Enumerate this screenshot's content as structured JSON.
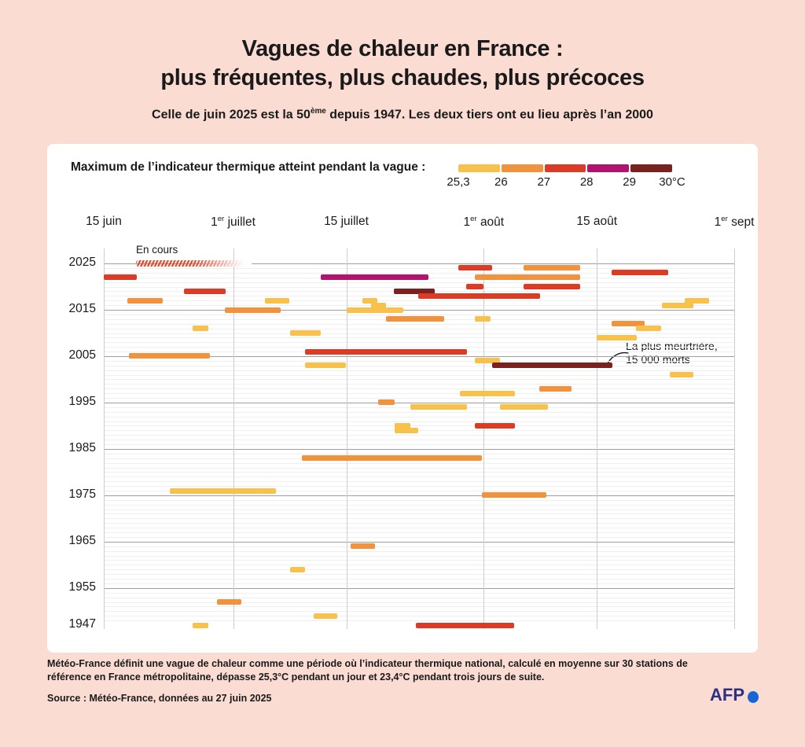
{
  "header": {
    "title_line1": "Vagues de chaleur en France :",
    "title_line2": "plus fréquentes, plus chaudes, plus précoces",
    "subtitle_pre": "Celle de juin 2025 est la 50",
    "subtitle_sup": "ème",
    "subtitle_post": " depuis 1947. Les deux tiers ont eu lieu après l’an 2000"
  },
  "legend": {
    "label": "Maximum de l’indicateur thermique atteint pendant la vague :",
    "boundary_labels": [
      "25,3",
      "26",
      "27",
      "28",
      "29",
      "30°C"
    ]
  },
  "annotations": {
    "en_cours": "En cours",
    "deadliest_line1": "La plus meurtrière,",
    "deadliest_line2": "15 000 morts"
  },
  "footer": {
    "note": "Météo-France définit une vague de chaleur comme une période où l’indicateur thermique national, calculé en moyenne sur 30 stations de référence en France métropolitaine, dépasse 25,3°C pendant un jour et 23,4°C pendant trois jours de suite.",
    "source": "Source : Météo-France, données au 27 juin 2025",
    "logo": "AFP"
  },
  "chart_data": {
    "type": "gantt",
    "description": "Heat waves in France 1947-2025; one horizontal bar per wave, x = day of summer (0 = 15 June, 78 = 1 September), y = year, color = maximum national thermal indicator reached",
    "time_axis": {
      "unit": "days from 15 June",
      "min": 0,
      "max": 78,
      "ticks": [
        {
          "day": 0,
          "pre": "15 juin",
          "sup": "",
          "post": ""
        },
        {
          "day": 16,
          "pre": "1",
          "sup": "er",
          "post": " juillet"
        },
        {
          "day": 30,
          "pre": "15 juillet",
          "sup": "",
          "post": ""
        },
        {
          "day": 47,
          "pre": "1",
          "sup": "er",
          "post": " août"
        },
        {
          "day": 61,
          "pre": "15 août",
          "sup": "",
          "post": ""
        },
        {
          "day": 78,
          "pre": "1",
          "sup": "er",
          "post": " sept"
        }
      ]
    },
    "year_axis": {
      "min": 1947,
      "max": 2025,
      "labels": [
        2025,
        2015,
        2005,
        1995,
        1985,
        1975,
        1965,
        1955,
        1947
      ]
    },
    "levels": [
      {
        "key": "yellow",
        "range": "25,3–26°C",
        "color": "#F7C14B"
      },
      {
        "key": "orange",
        "range": "26–27°C",
        "color": "#F0923E"
      },
      {
        "key": "red",
        "range": "27–28°C",
        "color": "#DC3C26"
      },
      {
        "key": "magenta",
        "range": "28–29°C",
        "color": "#B1136E"
      },
      {
        "key": "maroon",
        "range": "29–30°C",
        "color": "#7B2221"
      }
    ],
    "waves": [
      {
        "year": 2025,
        "start": 4.0,
        "end": 18.3,
        "level": "red",
        "hatched": true,
        "status": "En cours"
      },
      {
        "year": 2024,
        "start": 43.9,
        "end": 48.0,
        "level": "red"
      },
      {
        "year": 2024,
        "start": 51.9,
        "end": 58.9,
        "level": "orange"
      },
      {
        "year": 2023,
        "start": 62.8,
        "end": 69.8,
        "level": "red"
      },
      {
        "year": 2022,
        "start": 0.0,
        "end": 4.1,
        "level": "red"
      },
      {
        "year": 2022,
        "start": 26.8,
        "end": 40.2,
        "level": "magenta"
      },
      {
        "year": 2022,
        "start": 45.9,
        "end": 58.9,
        "level": "orange"
      },
      {
        "year": 2020,
        "start": 44.8,
        "end": 47.0,
        "level": "red"
      },
      {
        "year": 2020,
        "start": 51.9,
        "end": 58.9,
        "level": "red"
      },
      {
        "year": 2019,
        "start": 9.9,
        "end": 15.1,
        "level": "red"
      },
      {
        "year": 2019,
        "start": 35.9,
        "end": 41.0,
        "level": "maroon"
      },
      {
        "year": 2018,
        "start": 38.9,
        "end": 54.0,
        "level": "red"
      },
      {
        "year": 2017,
        "start": 2.9,
        "end": 7.3,
        "level": "orange"
      },
      {
        "year": 2017,
        "start": 19.9,
        "end": 23.0,
        "level": "yellow"
      },
      {
        "year": 2017,
        "start": 32.0,
        "end": 33.8,
        "level": "yellow"
      },
      {
        "year": 2017,
        "start": 71.9,
        "end": 74.9,
        "level": "yellow"
      },
      {
        "year": 2016,
        "start": 33.1,
        "end": 34.9,
        "level": "yellow"
      },
      {
        "year": 2016,
        "start": 69.0,
        "end": 72.9,
        "level": "yellow"
      },
      {
        "year": 2015,
        "start": 15.0,
        "end": 21.9,
        "level": "orange"
      },
      {
        "year": 2015,
        "start": 30.0,
        "end": 37.0,
        "level": "yellow"
      },
      {
        "year": 2013,
        "start": 34.9,
        "end": 42.1,
        "level": "orange"
      },
      {
        "year": 2013,
        "start": 45.9,
        "end": 47.9,
        "level": "yellow"
      },
      {
        "year": 2012,
        "start": 62.8,
        "end": 66.9,
        "level": "orange"
      },
      {
        "year": 2011,
        "start": 11.0,
        "end": 12.9,
        "level": "yellow"
      },
      {
        "year": 2011,
        "start": 65.8,
        "end": 69.0,
        "level": "yellow"
      },
      {
        "year": 2010,
        "start": 23.0,
        "end": 26.8,
        "level": "yellow"
      },
      {
        "year": 2009,
        "start": 61.0,
        "end": 65.9,
        "level": "yellow"
      },
      {
        "year": 2006,
        "start": 24.9,
        "end": 44.9,
        "level": "red"
      },
      {
        "year": 2005,
        "start": 3.1,
        "end": 13.1,
        "level": "orange"
      },
      {
        "year": 2004,
        "start": 45.9,
        "end": 49.0,
        "level": "yellow"
      },
      {
        "year": 2003,
        "start": 24.9,
        "end": 30.0,
        "level": "yellow"
      },
      {
        "year": 2003,
        "start": 48.0,
        "end": 62.9,
        "level": "maroon",
        "note": "La plus meurtrière, 15 000 morts"
      },
      {
        "year": 2001,
        "start": 70.0,
        "end": 73.0,
        "level": "yellow"
      },
      {
        "year": 1998,
        "start": 53.9,
        "end": 57.9,
        "level": "orange"
      },
      {
        "year": 1997,
        "start": 44.1,
        "end": 50.9,
        "level": "yellow"
      },
      {
        "year": 1995,
        "start": 33.9,
        "end": 36.0,
        "level": "orange"
      },
      {
        "year": 1994,
        "start": 37.9,
        "end": 44.9,
        "level": "yellow"
      },
      {
        "year": 1994,
        "start": 49.0,
        "end": 55.0,
        "level": "yellow"
      },
      {
        "year": 1990,
        "start": 36.0,
        "end": 37.9,
        "level": "yellow"
      },
      {
        "year": 1990,
        "start": 45.9,
        "end": 50.9,
        "level": "red"
      },
      {
        "year": 1989,
        "start": 36.0,
        "end": 38.9,
        "level": "yellow"
      },
      {
        "year": 1983,
        "start": 24.5,
        "end": 46.8,
        "level": "orange"
      },
      {
        "year": 1976,
        "start": 8.2,
        "end": 21.3,
        "level": "yellow"
      },
      {
        "year": 1975,
        "start": 46.8,
        "end": 54.8,
        "level": "orange"
      },
      {
        "year": 1964,
        "start": 30.5,
        "end": 33.6,
        "level": "orange"
      },
      {
        "year": 1959,
        "start": 23.0,
        "end": 24.9,
        "level": "yellow"
      },
      {
        "year": 1952,
        "start": 14.0,
        "end": 17.0,
        "level": "orange"
      },
      {
        "year": 1949,
        "start": 26.0,
        "end": 28.9,
        "level": "yellow"
      },
      {
        "year": 1947,
        "start": 11.0,
        "end": 12.9,
        "level": "yellow"
      },
      {
        "year": 1947,
        "start": 38.6,
        "end": 50.8,
        "level": "red"
      }
    ]
  }
}
